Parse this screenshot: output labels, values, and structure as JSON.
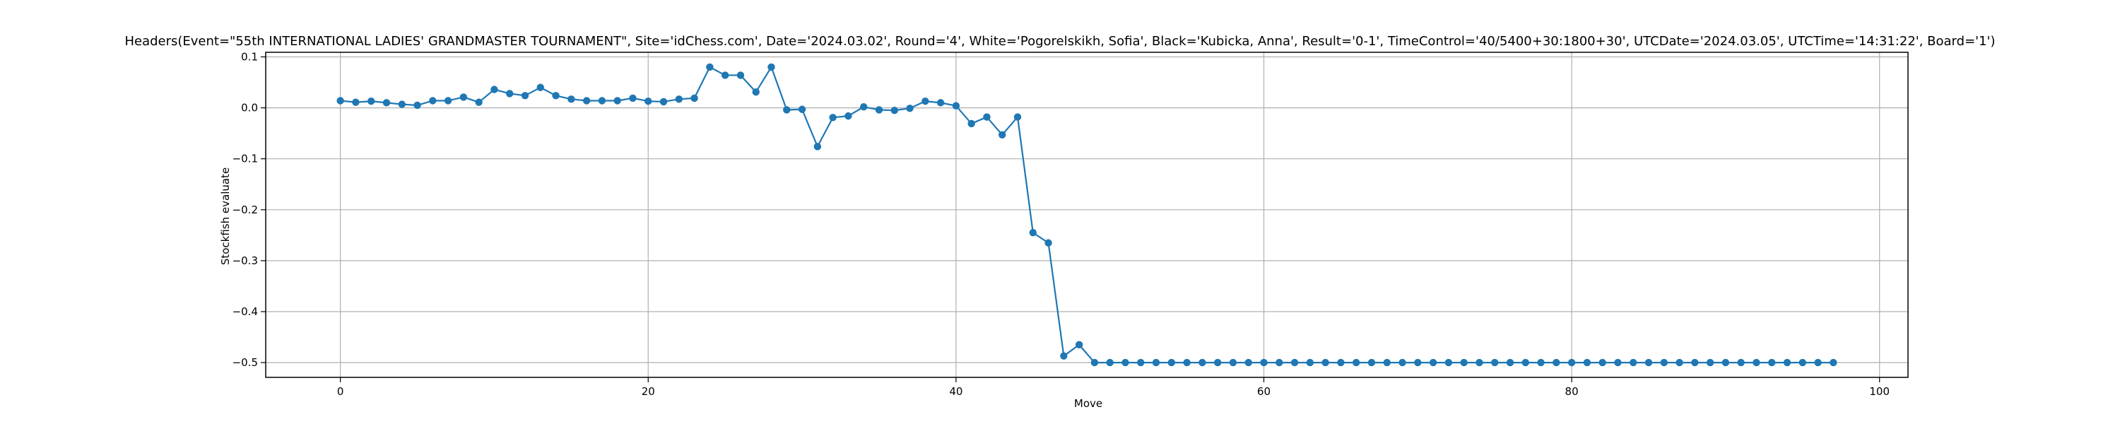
{
  "chart_data": {
    "type": "line",
    "title": "Headers(Event=\"55th INTERNATIONAL LADIES' GRANDMASTER TOURNAMENT\", Site='idChess.com', Date='2024.03.02', Round='4', White='Pogorelskikh, Sofia', Black='Kubicka, Anna', Result='0-1', TimeControl='40/5400+30:1800+30', UTCDate='2024.03.05', UTCTime='14:31:22', Board='1')",
    "xlabel": "Move",
    "ylabel": "Stockfish evaluate",
    "xlim": [
      -4.85,
      101.85
    ],
    "ylim": [
      -0.529,
      0.109
    ],
    "xticks": [
      0,
      20,
      40,
      60,
      80,
      100
    ],
    "xtick_labels": [
      "0",
      "20",
      "40",
      "60",
      "80",
      "100"
    ],
    "yticks": [
      0.1,
      0.0,
      -0.1,
      -0.2,
      -0.3,
      -0.4,
      -0.5
    ],
    "ytick_labels": [
      "0.1",
      "0.0",
      "−0.1",
      "−0.2",
      "−0.3",
      "−0.4",
      "−0.5"
    ],
    "grid": true,
    "series_color": "#1f77b4",
    "series": [
      {
        "x": [
          0,
          1,
          2,
          3,
          4,
          5,
          6,
          7,
          8,
          9,
          10,
          11,
          12,
          13,
          14,
          15,
          16,
          17,
          18,
          19,
          20,
          21,
          22,
          23,
          24,
          25,
          26,
          27,
          28,
          29,
          30,
          31,
          32,
          33,
          34,
          35,
          36,
          37,
          38,
          39,
          40,
          41,
          42,
          43,
          44,
          45,
          46,
          47,
          48,
          49,
          50,
          51,
          52,
          53,
          54,
          55,
          56,
          57,
          58,
          59,
          60,
          61,
          62,
          63,
          64,
          65,
          66,
          67,
          68,
          69,
          70,
          71,
          72,
          73,
          74,
          75,
          76,
          77,
          78,
          79,
          80,
          81,
          82,
          83,
          84,
          85,
          86,
          87,
          88,
          89,
          90,
          91,
          92,
          93,
          94,
          95,
          96,
          97
        ],
        "values": [
          0.014,
          0.011,
          0.013,
          0.01,
          0.007,
          0.005,
          0.014,
          0.014,
          0.021,
          0.011,
          0.036,
          0.028,
          0.024,
          0.04,
          0.024,
          0.017,
          0.014,
          0.014,
          0.014,
          0.019,
          0.013,
          0.012,
          0.017,
          0.019,
          0.08,
          0.064,
          0.064,
          0.031,
          0.08,
          -0.004,
          -0.003,
          -0.076,
          -0.019,
          -0.016,
          0.002,
          -0.004,
          -0.005,
          -0.001,
          0.013,
          0.01,
          0.004,
          -0.031,
          -0.018,
          -0.053,
          -0.018,
          -0.245,
          -0.265,
          -0.487,
          -0.465,
          -0.5,
          -0.5,
          -0.5,
          -0.5,
          -0.5,
          -0.5,
          -0.5,
          -0.5,
          -0.5,
          -0.5,
          -0.5,
          -0.5,
          -0.5,
          -0.5,
          -0.5,
          -0.5,
          -0.5,
          -0.5,
          -0.5,
          -0.5,
          -0.5,
          -0.5,
          -0.5,
          -0.5,
          -0.5,
          -0.5,
          -0.5,
          -0.5,
          -0.5,
          -0.5,
          -0.5,
          -0.5,
          -0.5,
          -0.5,
          -0.5,
          -0.5,
          -0.5,
          -0.5,
          -0.5,
          -0.5,
          -0.5,
          -0.5,
          -0.5,
          -0.5,
          -0.5,
          -0.5,
          -0.5,
          -0.5,
          -0.5
        ]
      }
    ]
  }
}
